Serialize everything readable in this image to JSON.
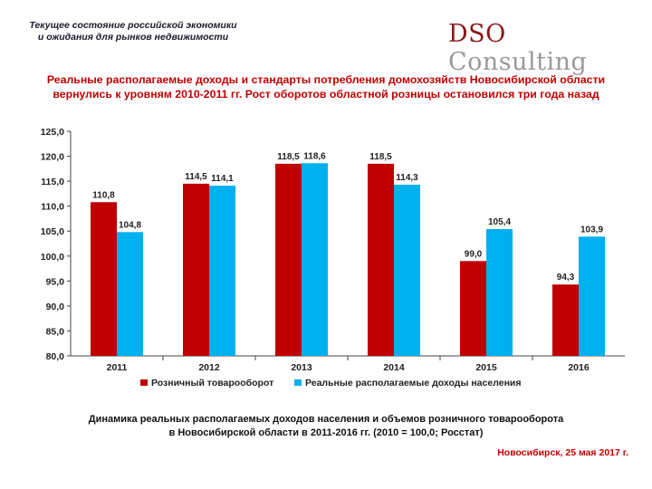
{
  "header": {
    "subtitle_line1": "Текущее состояние российской экономики",
    "subtitle_line2": "и ожидания для рынков недвижимости",
    "logo_brand": "DSO",
    "logo_rest": "Consulting"
  },
  "headline": "Реальные располагаемые доходы и стандарты потребления домохозяйств Новосибирской области вернулись к уровням 2010-2011 гг. Рост оборотов областной розницы остановился три года назад",
  "colors": {
    "retail": "#c00000",
    "income": "#00b0f0",
    "text": "#000000"
  },
  "chart_data": {
    "type": "bar",
    "categories": [
      "2011",
      "2012",
      "2013",
      "2014",
      "2015",
      "2016"
    ],
    "series": [
      {
        "name": "Розничный товарооборот",
        "values": [
          110.8,
          114.5,
          118.5,
          118.5,
          99.0,
          94.3
        ],
        "labels": [
          "110,8",
          "114,5",
          "118,5",
          "118,5",
          "99,0",
          "94,3"
        ]
      },
      {
        "name": "Реальные располагаемые доходы населения",
        "values": [
          104.8,
          114.1,
          118.6,
          114.3,
          105.4,
          103.9
        ],
        "labels": [
          "104,8",
          "114,1",
          "118,6",
          "114,3",
          "105,4",
          "103,9"
        ]
      }
    ],
    "ylim": [
      80,
      125
    ],
    "yticks": [
      "80,0",
      "85,0",
      "90,0",
      "95,0",
      "100,0",
      "105,0",
      "110,0",
      "115,0",
      "120,0",
      "125,0"
    ],
    "legend_position": "bottom",
    "title": "",
    "xlabel": "",
    "ylabel": ""
  },
  "caption_line1": "Динамика реальных располагаемых доходов населения и объемов розничного товарооборота",
  "caption_line2": "в Новосибирской области в 2011-2016 гг. (2010 = 100,0; Росстат)",
  "footer": "Новосибирск, 25 мая 2017 г."
}
